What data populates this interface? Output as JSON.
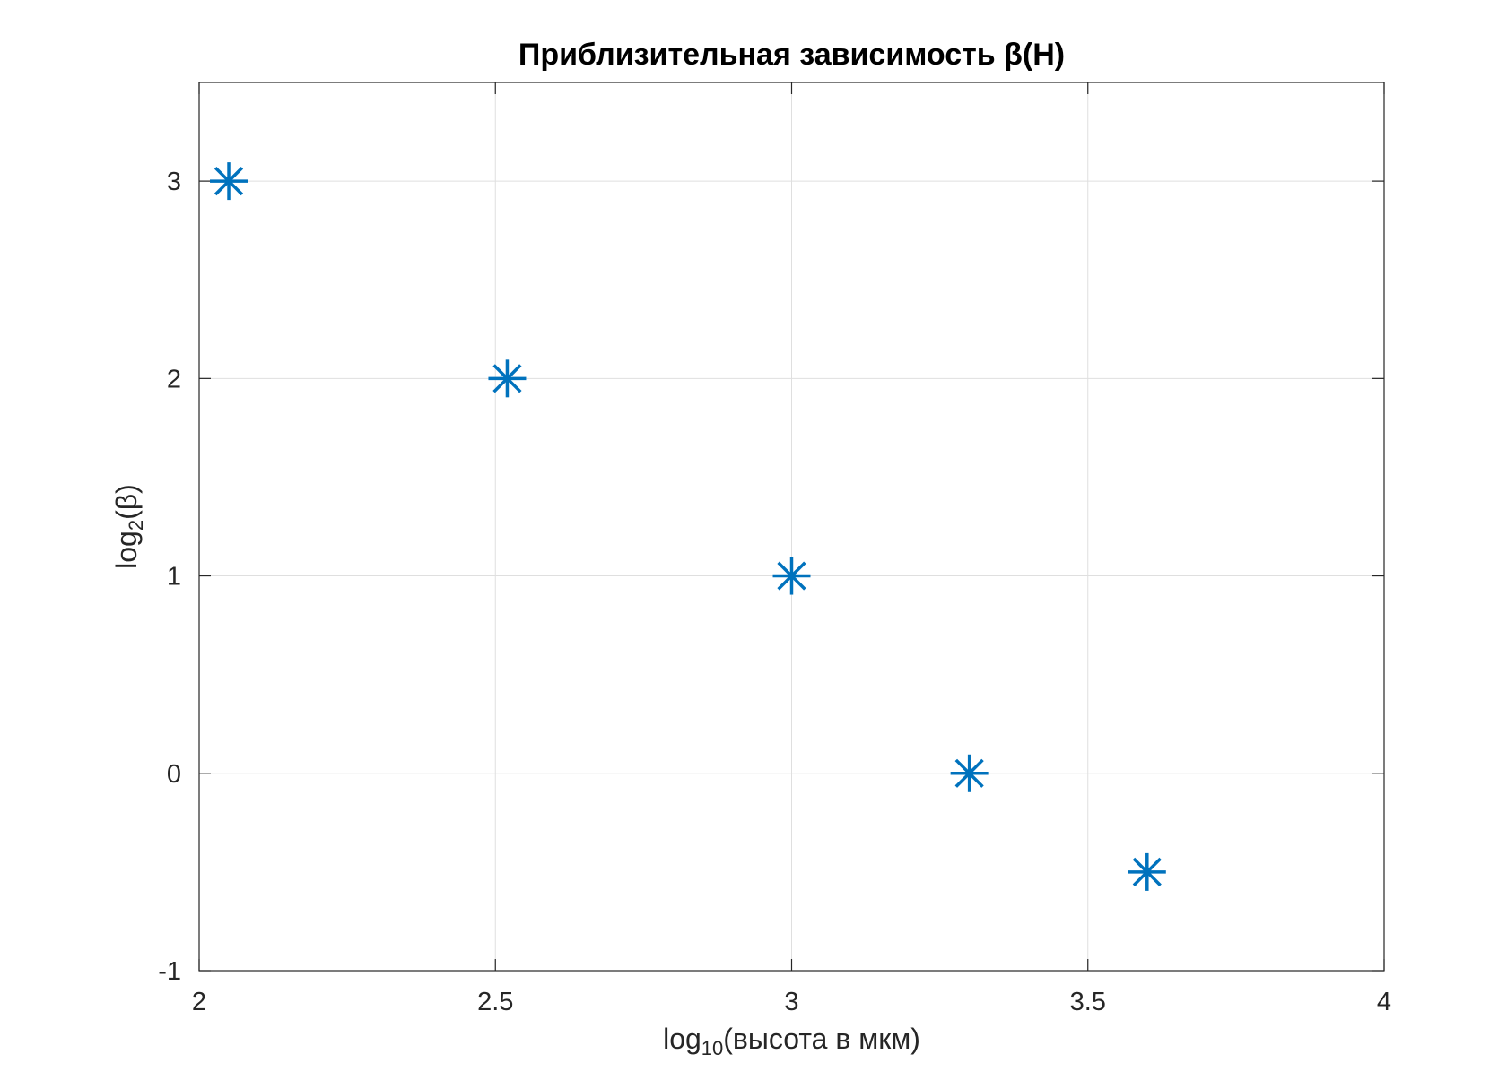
{
  "chart_data": {
    "type": "scatter",
    "title": "Приблизительная зависимость β(H)",
    "xlabel": {
      "prefix": "log",
      "subscript": "10",
      "suffix": "(высота в мкм)"
    },
    "ylabel": {
      "prefix": "log",
      "subscript": "2",
      "suffix": "(β)"
    },
    "xlim": [
      2,
      4
    ],
    "ylim": [
      -1,
      3.5
    ],
    "xticks": [
      "2",
      "2.5",
      "3",
      "3.5",
      "4"
    ],
    "yticks": [
      "-1",
      "0",
      "1",
      "2",
      "3"
    ],
    "grid": true,
    "marker": "asterisk",
    "color": "#0072BD",
    "series": [
      {
        "x": [
          2.05,
          2.52,
          3.0,
          3.3,
          3.6
        ],
        "y": [
          3,
          2,
          1,
          0,
          -0.5
        ]
      }
    ]
  }
}
